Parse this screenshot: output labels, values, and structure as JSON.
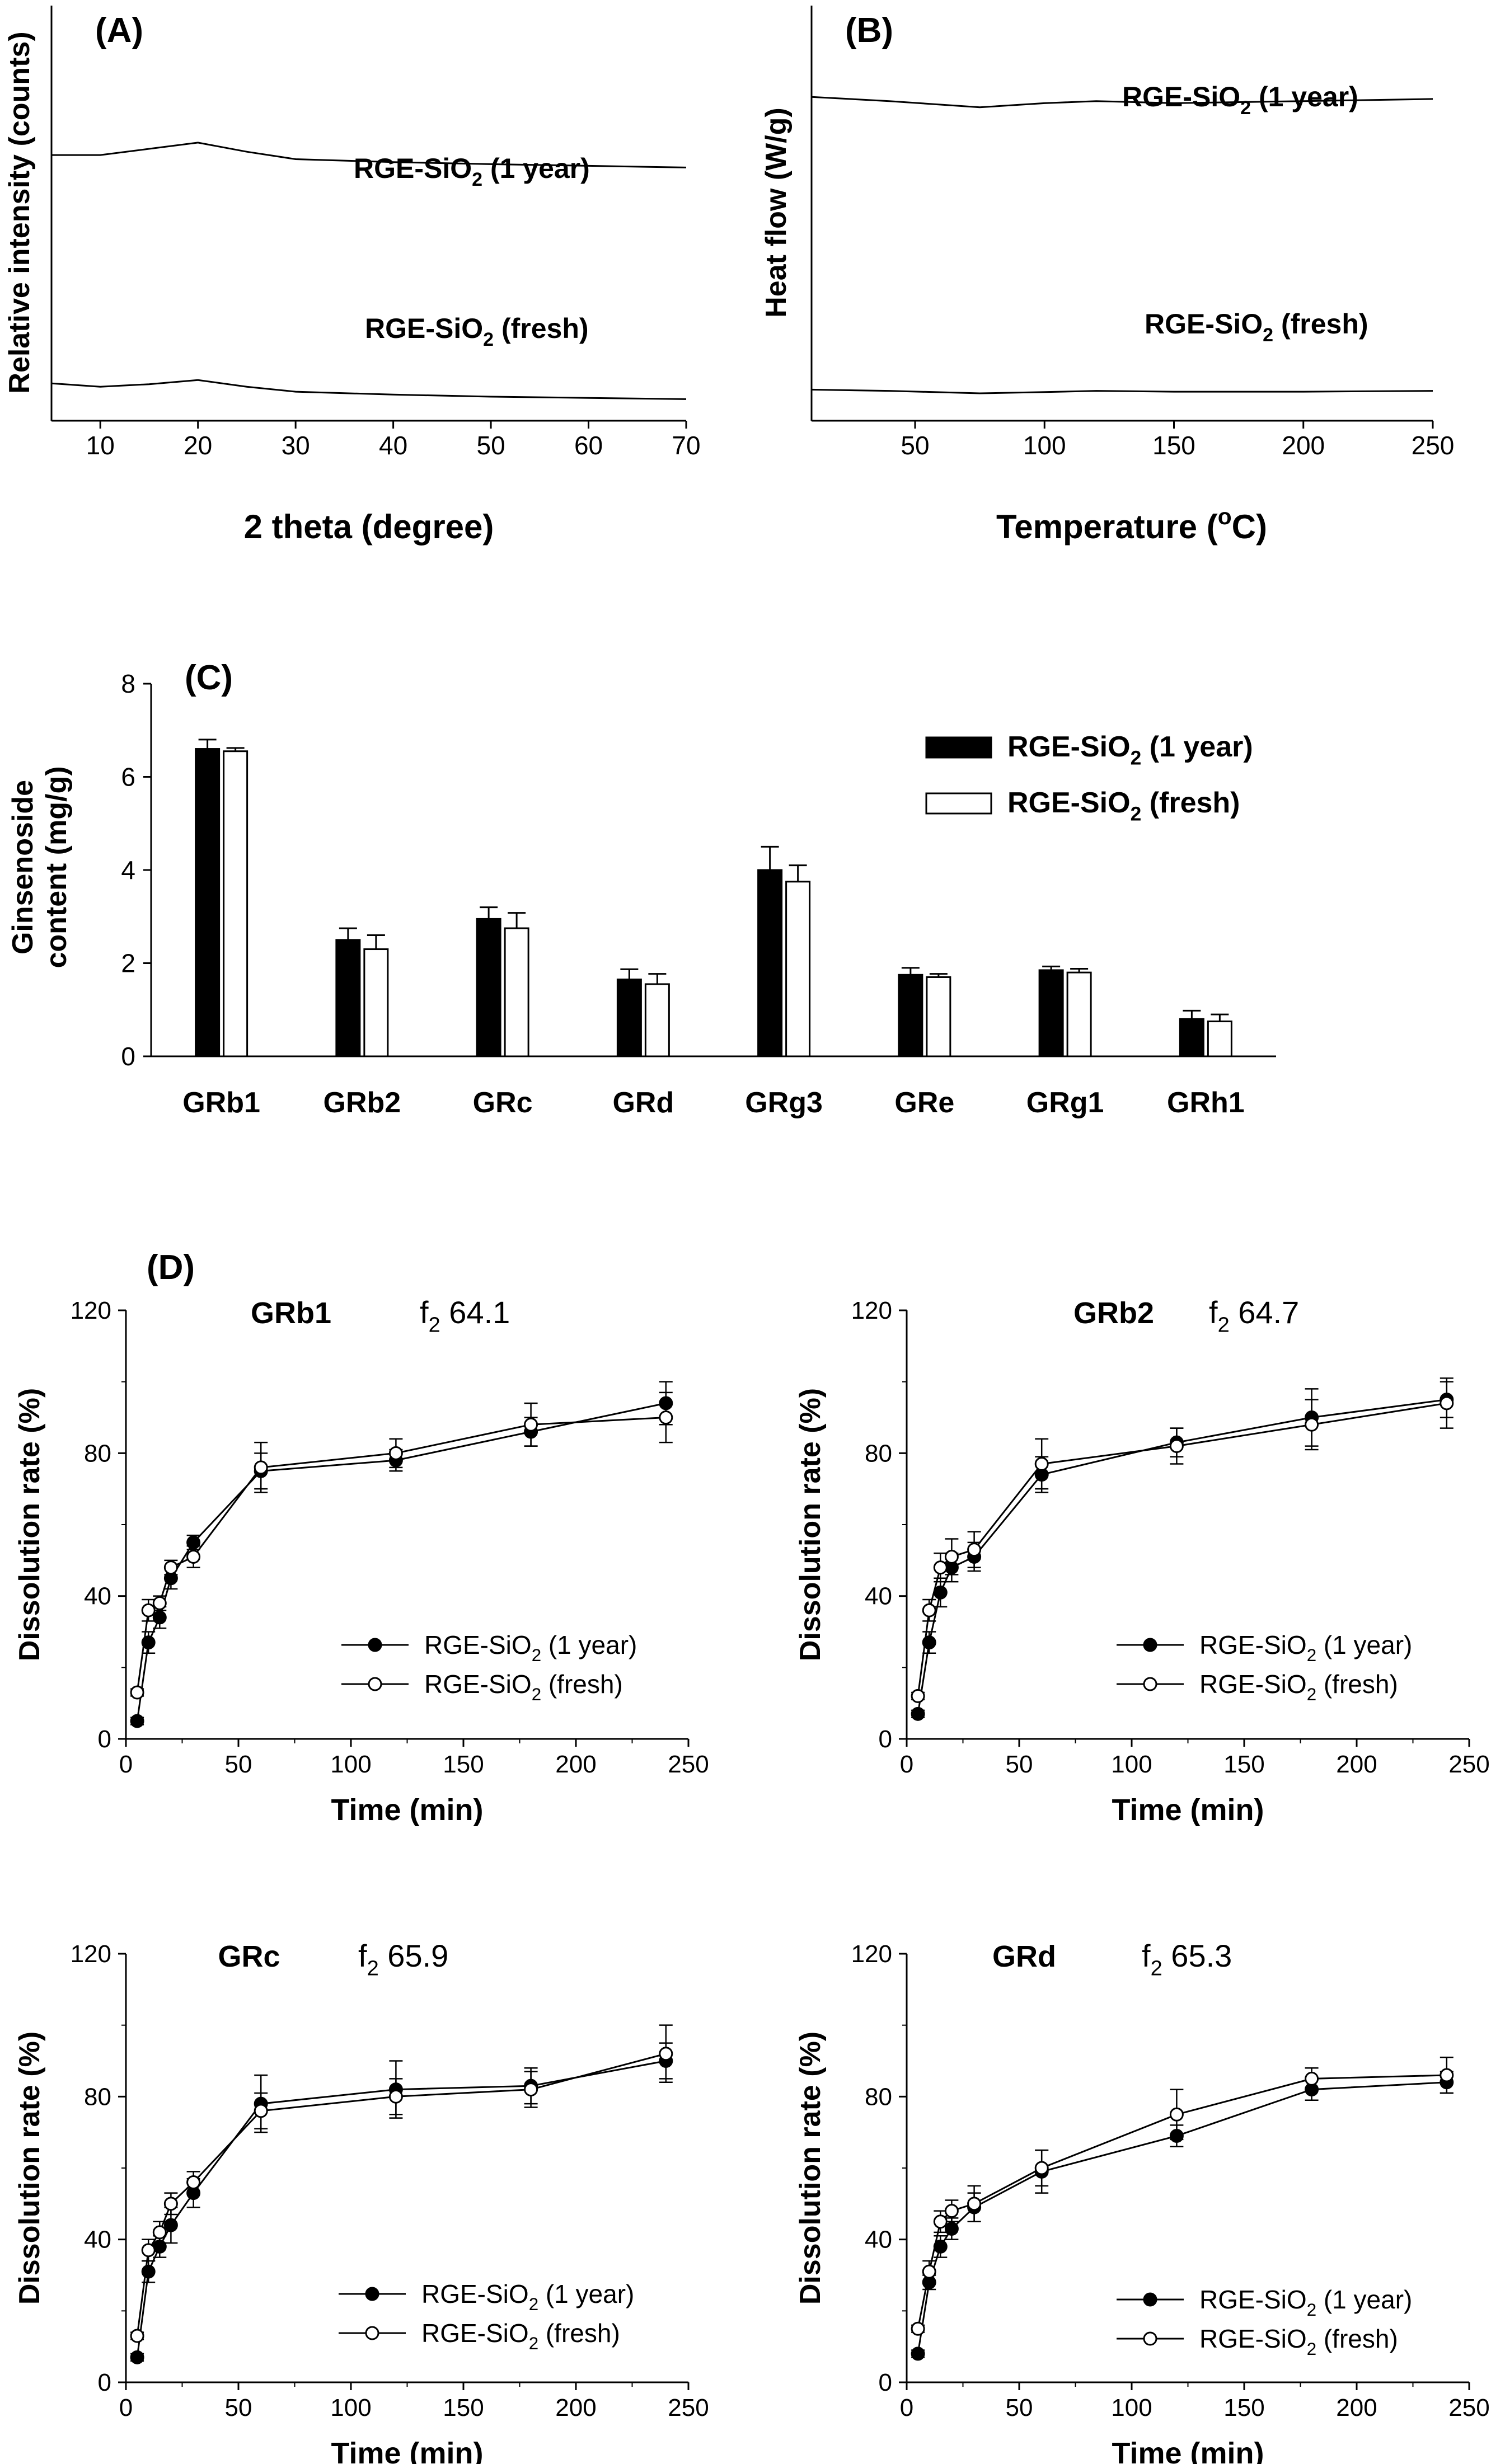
{
  "figure": {
    "panel_a": {
      "label": "(A)",
      "ylabel": "Relative intensity (counts)",
      "xlabel": "2 theta (degree)",
      "xticks": [
        "10",
        "20",
        "30",
        "40",
        "50",
        "60",
        "70"
      ],
      "trace_labels": [
        {
          "base": "RGE-SiO",
          "sub": "2",
          "tail": " (1 year)"
        },
        {
          "base": "RGE-SiO",
          "sub": "2",
          "tail": " (fresh)"
        }
      ]
    },
    "panel_b": {
      "label": "(B)",
      "ylabel": "Heat flow (W/g)",
      "xlabel_base": "Temperature (",
      "xlabel_sup": "o",
      "xlabel_tail": "C)",
      "xticks": [
        "50",
        "100",
        "150",
        "200",
        "250"
      ],
      "trace_labels": [
        {
          "base": "RGE-SiO",
          "sub": "2",
          "tail": " (1 year)"
        },
        {
          "base": "RGE-SiO",
          "sub": "2",
          "tail": " (fresh)"
        }
      ]
    },
    "panel_c": {
      "label": "(C)",
      "ylabel_line1": "Ginsenoside",
      "ylabel_line2": "content (mg/g)",
      "yticks": [
        "0",
        "2",
        "4",
        "6",
        "8"
      ],
      "legend": [
        {
          "base": "RGE-SiO",
          "sub": "2",
          "tail": " (1 year)"
        },
        {
          "base": "RGE-SiO",
          "sub": "2",
          "tail": " (fresh)"
        }
      ]
    },
    "panel_d": {
      "label": "(D)",
      "xlabel": "Time (min)",
      "ylabel": "Dissolution rate (%)",
      "xticks": [
        "0",
        "50",
        "100",
        "150",
        "200",
        "250"
      ],
      "yticks": [
        "0",
        "40",
        "80",
        "120"
      ],
      "legend": [
        {
          "base": "RGE-SiO",
          "sub": "2",
          "tail": " (1 year)"
        },
        {
          "base": "RGE-SiO",
          "sub": "2",
          "tail": " (fresh)"
        }
      ],
      "subplots": [
        {
          "name": "GRb1",
          "f2_base": "f",
          "f2_sub": "2",
          "f2_value": " 64.1"
        },
        {
          "name": "GRb2",
          "f2_base": "f",
          "f2_sub": "2",
          "f2_value": " 64.7"
        },
        {
          "name": "GRc",
          "f2_base": "f",
          "f2_sub": "2",
          "f2_value": " 65.9"
        },
        {
          "name": "GRd",
          "f2_base": "f",
          "f2_sub": "2",
          "f2_value": " 65.3"
        }
      ]
    }
  },
  "chart_data": [
    {
      "type": "line",
      "panel": "A",
      "title": "(A)",
      "xlabel": "2 theta (degree)",
      "ylabel": "Relative intensity (counts)",
      "xlim": [
        5,
        70
      ],
      "ylim": [
        0,
        1
      ],
      "series": [
        {
          "name": "RGE-SiO2 (1 year)",
          "x": [
            5,
            10,
            15,
            20,
            25,
            30,
            40,
            50,
            60,
            70
          ],
          "values": [
            0.64,
            0.64,
            0.655,
            0.67,
            0.648,
            0.63,
            0.623,
            0.618,
            0.614,
            0.61
          ]
        },
        {
          "name": "RGE-SiO2 (fresh)",
          "x": [
            5,
            10,
            15,
            20,
            25,
            30,
            40,
            50,
            60,
            70
          ],
          "values": [
            0.09,
            0.082,
            0.088,
            0.098,
            0.082,
            0.07,
            0.063,
            0.058,
            0.055,
            0.052
          ]
        }
      ]
    },
    {
      "type": "line",
      "panel": "B",
      "title": "(B)",
      "xlabel": "Temperature (oC)",
      "ylabel": "Heat flow (W/g)",
      "xlim": [
        10,
        250
      ],
      "ylim": [
        0,
        1
      ],
      "series": [
        {
          "name": "RGE-SiO2 (1 year)",
          "x": [
            10,
            40,
            75,
            100,
            120,
            150,
            200,
            250
          ],
          "values": [
            0.78,
            0.77,
            0.755,
            0.765,
            0.77,
            0.765,
            0.77,
            0.775
          ]
        },
        {
          "name": "RGE-SiO2 (fresh)",
          "x": [
            10,
            40,
            75,
            100,
            120,
            150,
            200,
            250
          ],
          "values": [
            0.075,
            0.072,
            0.066,
            0.069,
            0.072,
            0.07,
            0.07,
            0.072
          ]
        }
      ]
    },
    {
      "type": "bar",
      "panel": "C",
      "title": "(C)",
      "ylabel": "Ginsenoside content (mg/g)",
      "ylim": [
        0,
        8
      ],
      "categories": [
        "GRb1",
        "GRb2",
        "GRc",
        "GRd",
        "GRg3",
        "GRe",
        "GRg1",
        "GRh1"
      ],
      "series": [
        {
          "name": "RGE-SiO2 (1 year)",
          "values": [
            6.6,
            2.5,
            2.95,
            1.65,
            4.0,
            1.75,
            1.85,
            0.8
          ],
          "errors": [
            0.2,
            0.25,
            0.25,
            0.22,
            0.5,
            0.15,
            0.08,
            0.18
          ]
        },
        {
          "name": "RGE-SiO2 (fresh)",
          "values": [
            6.55,
            2.3,
            2.75,
            1.55,
            3.75,
            1.7,
            1.8,
            0.75
          ],
          "errors": [
            0.07,
            0.3,
            0.33,
            0.22,
            0.35,
            0.07,
            0.08,
            0.15
          ]
        }
      ]
    },
    {
      "type": "line",
      "panel": "D",
      "title": "GRb1",
      "annotation": "f2 64.1",
      "xlabel": "Time (min)",
      "ylabel": "Dissolution rate (%)",
      "xlim": [
        0,
        250
      ],
      "ylim": [
        0,
        120
      ],
      "x": [
        5,
        10,
        15,
        20,
        30,
        60,
        120,
        180,
        240
      ],
      "series": [
        {
          "name": "RGE-SiO2 (1 year)",
          "values": [
            5,
            27,
            34,
            45,
            55,
            75,
            78,
            86,
            94
          ],
          "errors": [
            1,
            3,
            3,
            3,
            2,
            5,
            3,
            4,
            6
          ]
        },
        {
          "name": "RGE-SiO2 (fresh)",
          "values": [
            13,
            36,
            38,
            48,
            51,
            76,
            80,
            88,
            90
          ],
          "errors": [
            1,
            3,
            2,
            2,
            3,
            7,
            4,
            6,
            7
          ]
        }
      ]
    },
    {
      "type": "line",
      "panel": "D",
      "title": "GRb2",
      "annotation": "f2 64.7",
      "xlabel": "Time (min)",
      "ylabel": "Dissolution rate (%)",
      "xlim": [
        0,
        250
      ],
      "ylim": [
        0,
        120
      ],
      "x": [
        5,
        10,
        15,
        20,
        30,
        60,
        120,
        180,
        240
      ],
      "series": [
        {
          "name": "RGE-SiO2 (1 year)",
          "values": [
            7,
            27,
            41,
            48,
            51,
            74,
            83,
            90,
            95
          ],
          "errors": [
            1,
            3,
            4,
            4,
            4,
            5,
            4,
            8,
            5
          ]
        },
        {
          "name": "RGE-SiO2 (fresh)",
          "values": [
            12,
            36,
            48,
            51,
            53,
            77,
            82,
            88,
            94
          ],
          "errors": [
            1,
            3,
            4,
            5,
            5,
            7,
            5,
            7,
            7
          ]
        }
      ]
    },
    {
      "type": "line",
      "panel": "D",
      "title": "GRc",
      "annotation": "f2 65.9",
      "xlabel": "Time (min)",
      "ylabel": "Dissolution rate (%)",
      "xlim": [
        0,
        250
      ],
      "ylim": [
        0,
        120
      ],
      "x": [
        5,
        10,
        15,
        20,
        30,
        60,
        120,
        180,
        240
      ],
      "series": [
        {
          "name": "RGE-SiO2 (1 year)",
          "values": [
            7,
            31,
            38,
            44,
            53,
            78,
            82,
            83,
            90
          ],
          "errors": [
            1,
            3,
            3,
            5,
            4,
            8,
            8,
            5,
            5
          ]
        },
        {
          "name": "RGE-SiO2 (fresh)",
          "values": [
            13,
            37,
            42,
            50,
            56,
            76,
            80,
            82,
            92
          ],
          "errors": [
            1,
            3,
            3,
            3,
            3,
            5,
            5,
            5,
            8
          ]
        }
      ]
    },
    {
      "type": "line",
      "panel": "D",
      "title": "GRd",
      "annotation": "f2 65.3",
      "xlabel": "Time (min)",
      "ylabel": "Dissolution rate (%)",
      "xlim": [
        0,
        250
      ],
      "ylim": [
        0,
        120
      ],
      "x": [
        5,
        10,
        15,
        20,
        30,
        60,
        120,
        180,
        240
      ],
      "series": [
        {
          "name": "RGE-SiO2 (1 year)",
          "values": [
            8,
            28,
            38,
            43,
            49,
            59,
            69,
            82,
            84
          ],
          "errors": [
            1,
            2,
            3,
            3,
            4,
            6,
            3,
            3,
            3
          ]
        },
        {
          "name": "RGE-SiO2 (fresh)",
          "values": [
            15,
            31,
            45,
            48,
            50,
            60,
            75,
            85,
            86
          ],
          "errors": [
            1,
            3,
            3,
            3,
            5,
            5,
            7,
            3,
            5
          ]
        }
      ]
    }
  ]
}
